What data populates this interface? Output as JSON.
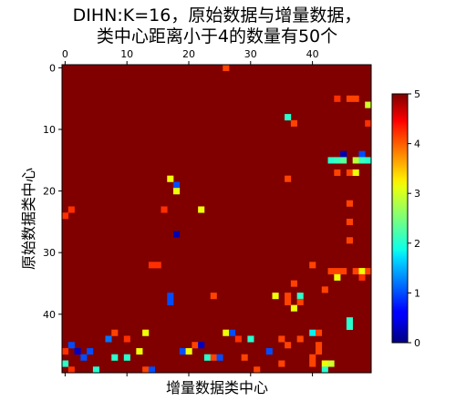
{
  "chart_data": {
    "type": "heatmap",
    "title_lines": [
      "DIHN:K=16，原始数据与增量数据，",
      "类中心距离小于4的数量有50个"
    ],
    "xlabel": "增量数据类中心",
    "ylabel": "原始数据类中心",
    "n_cols": 50,
    "n_rows": 50,
    "background_value": 5,
    "x_ticks": [
      0,
      10,
      20,
      30,
      40
    ],
    "y_ticks": [
      0,
      10,
      20,
      30,
      40
    ],
    "x_tick_position": "top",
    "colormap": "jet",
    "vmin": 0,
    "vmax": 5,
    "colorbar_ticks": [
      0,
      1,
      2,
      3,
      4,
      5
    ],
    "cells": [
      {
        "x": 26,
        "y": 0,
        "v": 4.2
      },
      {
        "x": 44,
        "y": 5,
        "v": 4.3
      },
      {
        "x": 46,
        "y": 5,
        "v": 4.2
      },
      {
        "x": 47,
        "y": 5,
        "v": 4.2
      },
      {
        "x": 49,
        "y": 6,
        "v": 3.0
      },
      {
        "x": 36,
        "y": 8,
        "v": 2.0
      },
      {
        "x": 37,
        "y": 9,
        "v": 4.2
      },
      {
        "x": 49,
        "y": 9,
        "v": 4.3
      },
      {
        "x": 45,
        "y": 14,
        "v": 0.2
      },
      {
        "x": 48,
        "y": 14,
        "v": 1.0
      },
      {
        "x": 43,
        "y": 15,
        "v": 2.0
      },
      {
        "x": 44,
        "y": 15,
        "v": 2.1
      },
      {
        "x": 45,
        "y": 15,
        "v": 2.3
      },
      {
        "x": 47,
        "y": 15,
        "v": 2.9
      },
      {
        "x": 48,
        "y": 15,
        "v": 2.1
      },
      {
        "x": 49,
        "y": 15,
        "v": 2.0
      },
      {
        "x": 44,
        "y": 17,
        "v": 4.2
      },
      {
        "x": 46,
        "y": 17,
        "v": 4.2
      },
      {
        "x": 47,
        "y": 17,
        "v": 3.2
      },
      {
        "x": 17,
        "y": 18,
        "v": 3.2
      },
      {
        "x": 36,
        "y": 18,
        "v": 4.2
      },
      {
        "x": 18,
        "y": 19,
        "v": 1.0
      },
      {
        "x": 18,
        "y": 20,
        "v": 3.2
      },
      {
        "x": 46,
        "y": 22,
        "v": 4.2
      },
      {
        "x": 1,
        "y": 23,
        "v": 4.3
      },
      {
        "x": 16,
        "y": 23,
        "v": 4.3
      },
      {
        "x": 22,
        "y": 23,
        "v": 3.2
      },
      {
        "x": 0,
        "y": 24,
        "v": 4.3
      },
      {
        "x": 46,
        "y": 25,
        "v": 4.2
      },
      {
        "x": 18,
        "y": 27,
        "v": 0.2
      },
      {
        "x": 46,
        "y": 28,
        "v": 4.2
      },
      {
        "x": 14,
        "y": 32,
        "v": 4.3
      },
      {
        "x": 15,
        "y": 32,
        "v": 4.3
      },
      {
        "x": 40,
        "y": 32,
        "v": 4.2
      },
      {
        "x": 43,
        "y": 33,
        "v": 4.2
      },
      {
        "x": 44,
        "y": 33,
        "v": 4.2
      },
      {
        "x": 45,
        "y": 33,
        "v": 4.2
      },
      {
        "x": 47,
        "y": 33,
        "v": 4.2
      },
      {
        "x": 48,
        "y": 33,
        "v": 3.2
      },
      {
        "x": 49,
        "y": 33,
        "v": 4.2
      },
      {
        "x": 44,
        "y": 34,
        "v": 3.2
      },
      {
        "x": 48,
        "y": 34,
        "v": 4.3
      },
      {
        "x": 37,
        "y": 35,
        "v": 4.2
      },
      {
        "x": 42,
        "y": 36,
        "v": 4.2
      },
      {
        "x": 17,
        "y": 37,
        "v": 1.0
      },
      {
        "x": 24,
        "y": 37,
        "v": 4.2
      },
      {
        "x": 34,
        "y": 37,
        "v": 3.2
      },
      {
        "x": 36,
        "y": 37,
        "v": 4.2
      },
      {
        "x": 38,
        "y": 37,
        "v": 2.0
      },
      {
        "x": 17,
        "y": 38,
        "v": 1.0
      },
      {
        "x": 36,
        "y": 38,
        "v": 4.2
      },
      {
        "x": 38,
        "y": 38,
        "v": 4.2
      },
      {
        "x": 37,
        "y": 39,
        "v": 3.2
      },
      {
        "x": 46,
        "y": 41,
        "v": 2.0
      },
      {
        "x": 46,
        "y": 42,
        "v": 2.0
      },
      {
        "x": 8,
        "y": 43,
        "v": 4.2
      },
      {
        "x": 13,
        "y": 43,
        "v": 3.2
      },
      {
        "x": 26,
        "y": 43,
        "v": 3.2
      },
      {
        "x": 27,
        "y": 43,
        "v": 1.0
      },
      {
        "x": 40,
        "y": 43,
        "v": 1.8
      },
      {
        "x": 41,
        "y": 43,
        "v": 4.2
      },
      {
        "x": 7,
        "y": 44,
        "v": 1.2
      },
      {
        "x": 10,
        "y": 44,
        "v": 4.3
      },
      {
        "x": 28,
        "y": 44,
        "v": 4.3
      },
      {
        "x": 30,
        "y": 44,
        "v": 2.0
      },
      {
        "x": 35,
        "y": 44,
        "v": 4.2
      },
      {
        "x": 38,
        "y": 44,
        "v": 4.2
      },
      {
        "x": 1,
        "y": 45,
        "v": 1.0
      },
      {
        "x": 21,
        "y": 45,
        "v": 4.2
      },
      {
        "x": 22,
        "y": 45,
        "v": 0.3
      },
      {
        "x": 36,
        "y": 45,
        "v": 4.2
      },
      {
        "x": 41,
        "y": 45,
        "v": 4.2
      },
      {
        "x": 0,
        "y": 46,
        "v": 4.3
      },
      {
        "x": 2,
        "y": 46,
        "v": 0.3
      },
      {
        "x": 4,
        "y": 46,
        "v": 1.0
      },
      {
        "x": 12,
        "y": 46,
        "v": 3.2
      },
      {
        "x": 19,
        "y": 46,
        "v": 1.0
      },
      {
        "x": 20,
        "y": 46,
        "v": 3.2
      },
      {
        "x": 33,
        "y": 46,
        "v": 1.0
      },
      {
        "x": 41,
        "y": 46,
        "v": 4.2
      },
      {
        "x": 3,
        "y": 47,
        "v": 1.0
      },
      {
        "x": 8,
        "y": 47,
        "v": 2.0
      },
      {
        "x": 10,
        "y": 47,
        "v": 2.0
      },
      {
        "x": 23,
        "y": 47,
        "v": 2.0
      },
      {
        "x": 24,
        "y": 47,
        "v": 4.2
      },
      {
        "x": 25,
        "y": 47,
        "v": 1.0
      },
      {
        "x": 29,
        "y": 47,
        "v": 4.2
      },
      {
        "x": 40,
        "y": 47,
        "v": 4.2
      },
      {
        "x": 0,
        "y": 48,
        "v": 2.0
      },
      {
        "x": 35,
        "y": 48,
        "v": 4.2
      },
      {
        "x": 40,
        "y": 48,
        "v": 4.2
      },
      {
        "x": 42,
        "y": 48,
        "v": 3.2
      },
      {
        "x": 43,
        "y": 48,
        "v": 3.0
      },
      {
        "x": 1,
        "y": 49,
        "v": 4.3
      },
      {
        "x": 5,
        "y": 49,
        "v": 2.0
      },
      {
        "x": 13,
        "y": 49,
        "v": 4.2
      },
      {
        "x": 14,
        "y": 49,
        "v": 1.0
      },
      {
        "x": 31,
        "y": 49,
        "v": 4.2
      },
      {
        "x": 42,
        "y": 49,
        "v": 2.0
      }
    ]
  }
}
